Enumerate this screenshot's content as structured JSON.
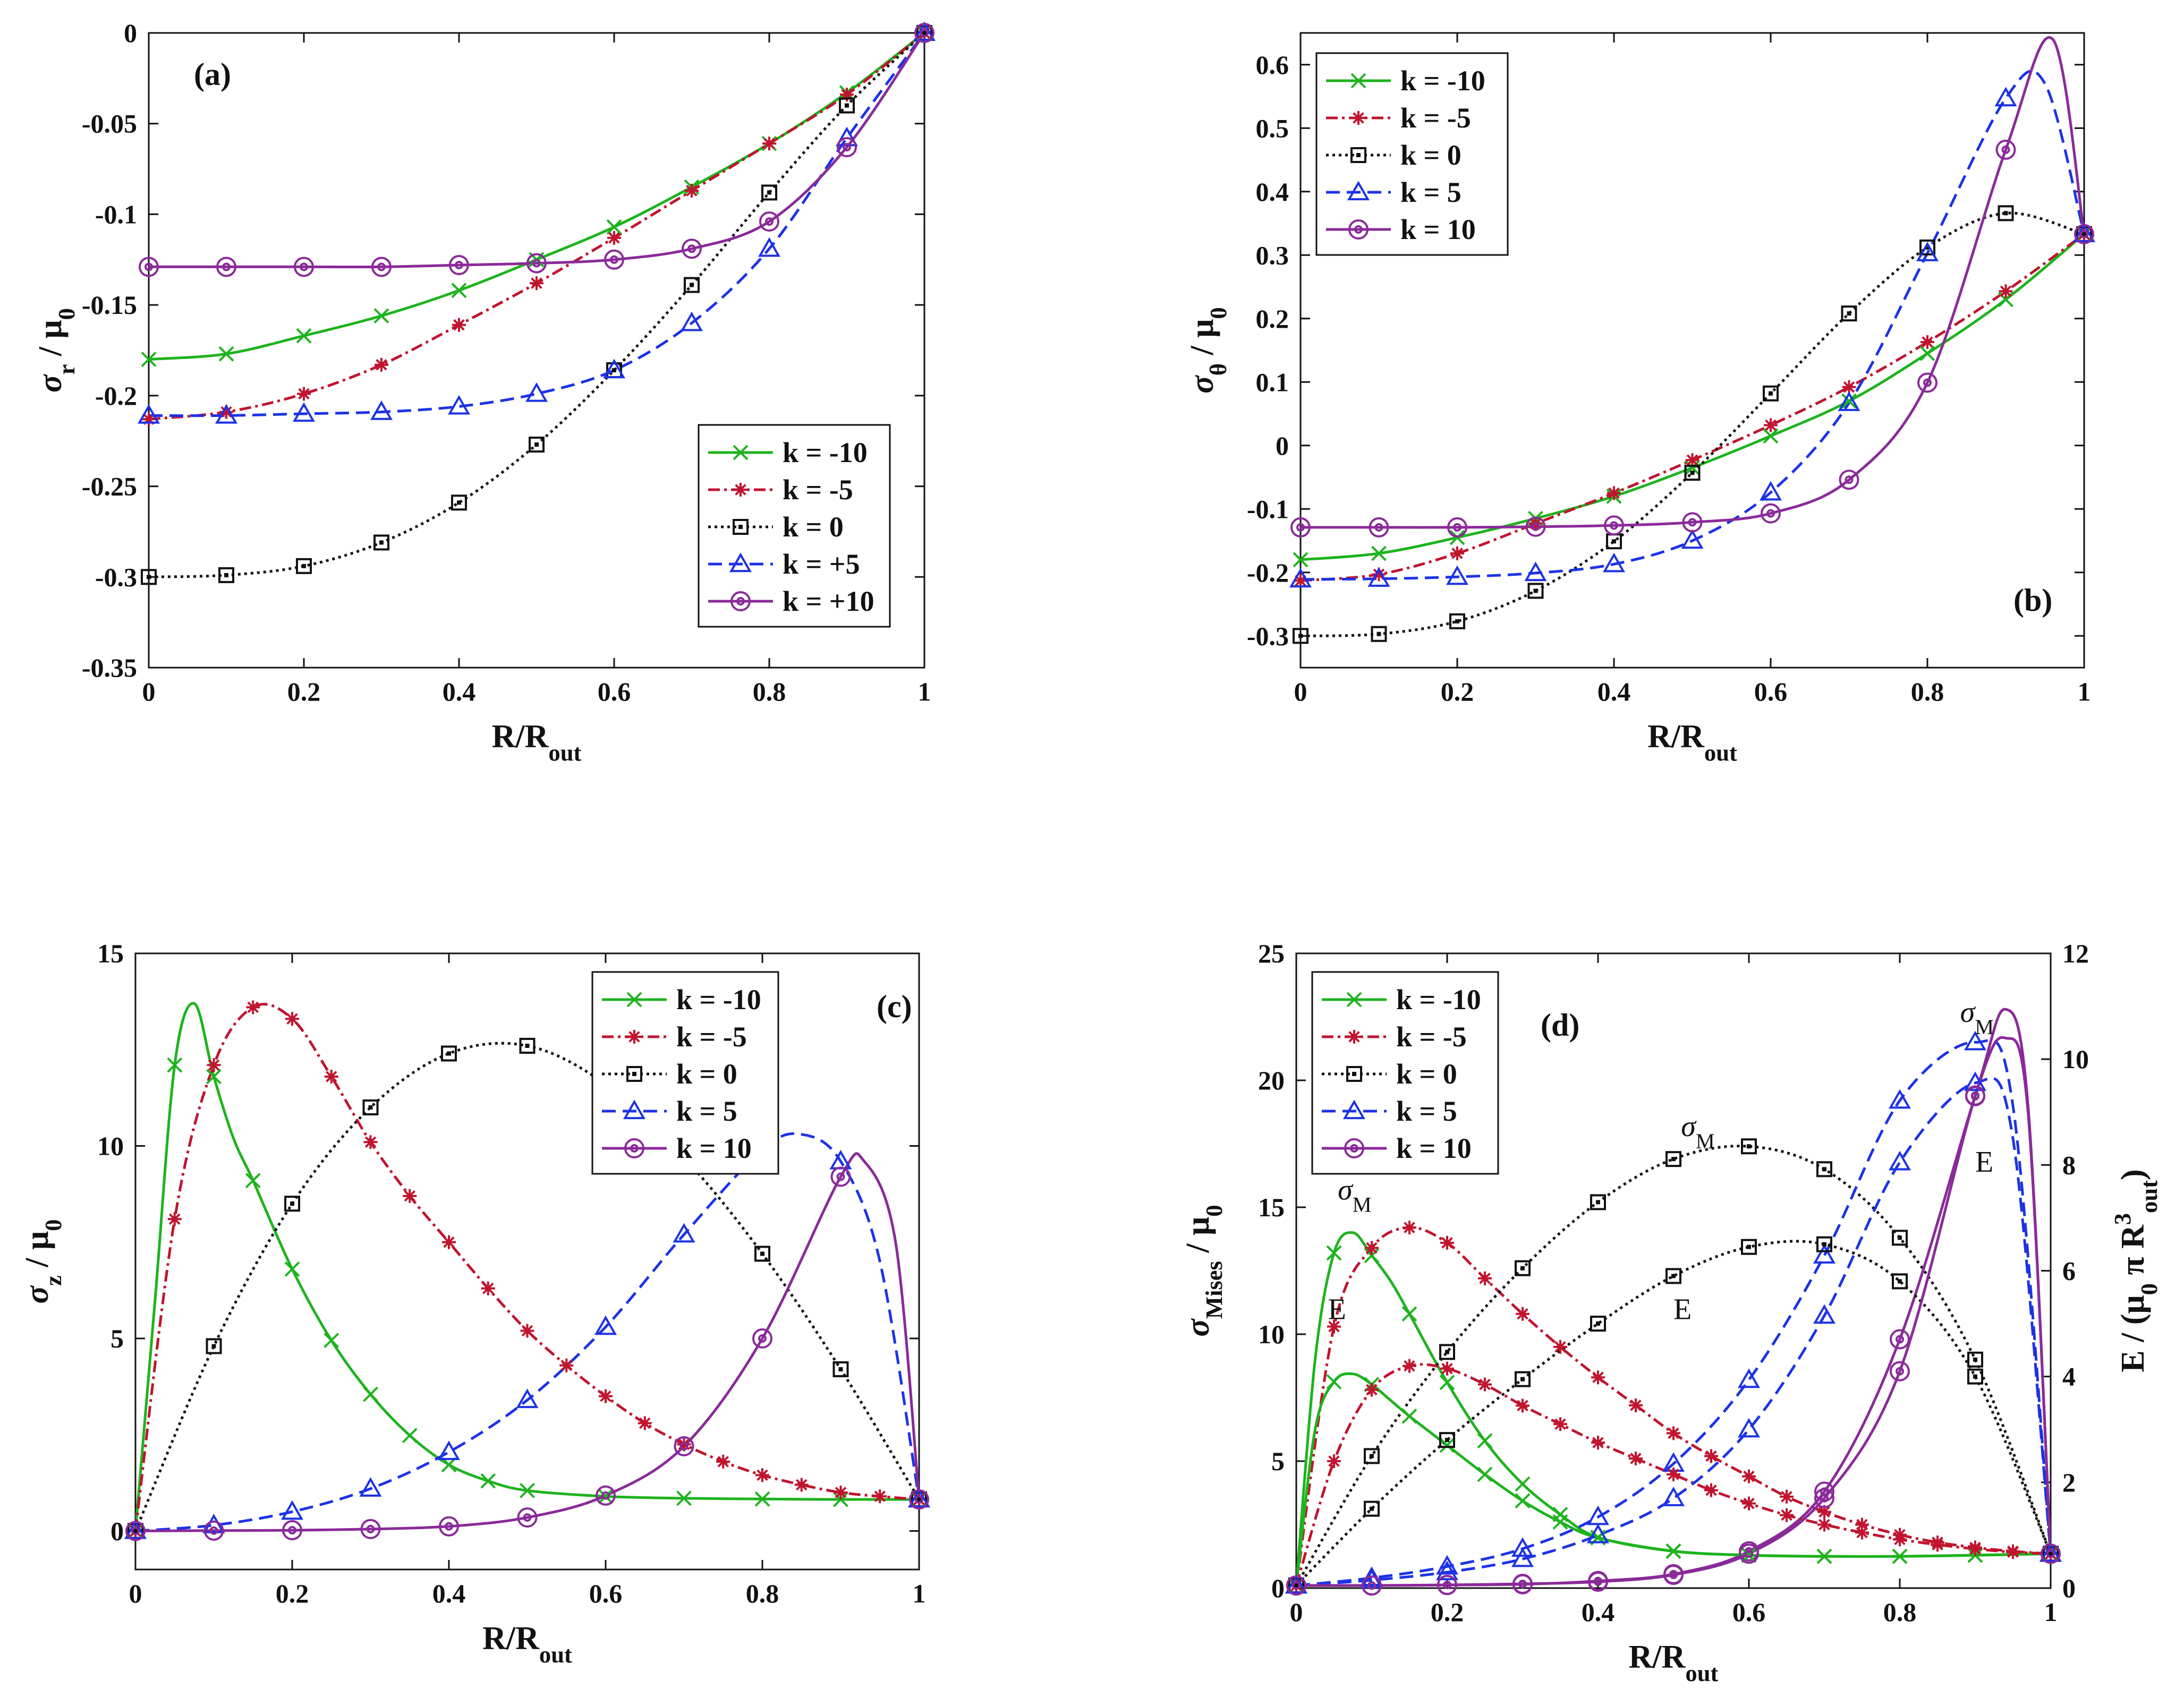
{
  "figure": {
    "style_colors": {
      "k=-10": "#1db31d",
      "k=-5": "#c0142f",
      "k=0": "#111111",
      "k=5": "#1c32e6",
      "k=10": "#8a2a99"
    },
    "panels": [
      {
        "tag": "(a)",
        "xlabel": "R/R",
        "xlabel_sub": "out",
        "ylabel": "σ",
        "ylabel_sub": "r",
        "ylabel_tail": " / μ",
        "ylabel_tail_sub": "0",
        "legend": [
          "k = -10",
          "k = -5",
          "k = 0",
          "k = +5",
          "k = +10"
        ]
      },
      {
        "tag": "(b)",
        "xlabel": "R/R",
        "xlabel_sub": "out",
        "ylabel": "σ",
        "ylabel_sub": "θ",
        "ylabel_tail": " / μ",
        "ylabel_tail_sub": "0",
        "legend": [
          "k = -10",
          "k = -5",
          "k = 0",
          "k = 5",
          "k = 10"
        ]
      },
      {
        "tag": "(c)",
        "xlabel": "R/R",
        "xlabel_sub": "out",
        "ylabel": "σ",
        "ylabel_sub": "z",
        "ylabel_tail": " / μ",
        "ylabel_tail_sub": "0",
        "legend": [
          "k = -10",
          "k = -5",
          "k = 0",
          "k = 5",
          "k = 10"
        ]
      },
      {
        "tag": "(d)",
        "xlabel": "R/R",
        "xlabel_sub": "out",
        "ylabel": "σ",
        "ylabel_sub": "Mises",
        "ylabel_tail": " / μ",
        "ylabel_tail_sub": "0",
        "y2label": "E / (μ",
        "y2label_sub": "0",
        "y2label_mid": " π R",
        "y2label_sup": "3",
        "y2label_sub2": "out",
        "y2label_end": ")",
        "legend": [
          "k = -10",
          "k = -5",
          "k = 0",
          "k = 5",
          "k = 10"
        ],
        "annotations": {
          "sigma": "σ",
          "sigma_sub": "M",
          "energy": "E"
        }
      }
    ]
  },
  "chart_data": [
    {
      "type": "line",
      "panel": "(a)",
      "xlabel": "R/Rout",
      "ylabel": "σr / μ0",
      "xlim": [
        0,
        1
      ],
      "ylim": [
        -0.35,
        0
      ],
      "xticks": [
        "0",
        "0.2",
        "0.4",
        "0.6",
        "0.8",
        "1"
      ],
      "yticks": [
        "-0.35",
        "-0.3",
        "-0.25",
        "-0.2",
        "-0.15",
        "-0.1",
        "-0.05",
        "0"
      ],
      "legend_position": "lower-right",
      "series": [
        {
          "name": "k = -10",
          "x": [
            0,
            0.1,
            0.2,
            0.3,
            0.4,
            0.5,
            0.6,
            0.7,
            0.8,
            0.9,
            1.0
          ],
          "y": [
            -0.18,
            -0.177,
            -0.167,
            -0.156,
            -0.142,
            -0.125,
            -0.107,
            -0.085,
            -0.061,
            -0.033,
            0
          ]
        },
        {
          "name": "k = -5",
          "x": [
            0,
            0.1,
            0.2,
            0.3,
            0.4,
            0.5,
            0.6,
            0.7,
            0.8,
            0.9,
            1.0
          ],
          "y": [
            -0.213,
            -0.209,
            -0.199,
            -0.183,
            -0.161,
            -0.138,
            -0.113,
            -0.087,
            -0.061,
            -0.034,
            0
          ]
        },
        {
          "name": "k = 0",
          "x": [
            0,
            0.1,
            0.2,
            0.3,
            0.4,
            0.5,
            0.6,
            0.7,
            0.8,
            0.9,
            1.0
          ],
          "y": [
            -0.3,
            -0.299,
            -0.294,
            -0.281,
            -0.259,
            -0.227,
            -0.186,
            -0.139,
            -0.088,
            -0.04,
            0
          ]
        },
        {
          "name": "k = +5",
          "x": [
            0,
            0.1,
            0.2,
            0.3,
            0.4,
            0.5,
            0.6,
            0.7,
            0.8,
            0.9,
            1.0
          ],
          "y": [
            -0.211,
            -0.211,
            -0.21,
            -0.209,
            -0.206,
            -0.199,
            -0.186,
            -0.16,
            -0.119,
            -0.058,
            0
          ]
        },
        {
          "name": "k = +10",
          "x": [
            0,
            0.1,
            0.2,
            0.3,
            0.4,
            0.5,
            0.6,
            0.7,
            0.8,
            0.9,
            1.0
          ],
          "y": [
            -0.129,
            -0.129,
            -0.129,
            -0.129,
            -0.128,
            -0.127,
            -0.125,
            -0.119,
            -0.104,
            -0.063,
            0
          ]
        }
      ]
    },
    {
      "type": "line",
      "panel": "(b)",
      "xlabel": "R/Rout",
      "ylabel": "σθ / μ0",
      "xlim": [
        0,
        1
      ],
      "ylim": [
        -0.35,
        0.65
      ],
      "xticks": [
        "0",
        "0.2",
        "0.4",
        "0.6",
        "0.8",
        "1"
      ],
      "yticks": [
        "-0.3",
        "-0.2",
        "-0.1",
        "0",
        "0.1",
        "0.2",
        "0.3",
        "0.4",
        "0.5",
        "0.6"
      ],
      "legend_position": "upper-left",
      "series": [
        {
          "name": "k = -10",
          "x": [
            0,
            0.1,
            0.2,
            0.3,
            0.4,
            0.5,
            0.6,
            0.7,
            0.8,
            0.9,
            1.0
          ],
          "y": [
            -0.18,
            -0.17,
            -0.145,
            -0.115,
            -0.08,
            -0.035,
            0.015,
            0.07,
            0.145,
            0.23,
            0.333
          ]
        },
        {
          "name": "k = -5",
          "x": [
            0,
            0.1,
            0.2,
            0.3,
            0.4,
            0.5,
            0.6,
            0.7,
            0.8,
            0.9,
            1.0
          ],
          "y": [
            -0.213,
            -0.203,
            -0.17,
            -0.123,
            -0.075,
            -0.023,
            0.032,
            0.092,
            0.163,
            0.243,
            0.333
          ]
        },
        {
          "name": "k = 0",
          "x": [
            0,
            0.1,
            0.2,
            0.3,
            0.4,
            0.5,
            0.6,
            0.7,
            0.8,
            0.9,
            1.0
          ],
          "y": [
            -0.3,
            -0.297,
            -0.277,
            -0.229,
            -0.151,
            -0.043,
            0.082,
            0.208,
            0.312,
            0.366,
            0.333
          ]
        },
        {
          "name": "k = 5",
          "x": [
            0,
            0.1,
            0.2,
            0.3,
            0.4,
            0.5,
            0.6,
            0.7,
            0.8,
            0.9,
            0.95,
            1.0
          ],
          "y": [
            -0.211,
            -0.21,
            -0.207,
            -0.201,
            -0.187,
            -0.15,
            -0.074,
            0.067,
            0.303,
            0.547,
            0.57,
            0.333
          ]
        },
        {
          "name": "k = 10",
          "x": [
            0,
            0.1,
            0.2,
            0.3,
            0.4,
            0.5,
            0.6,
            0.7,
            0.8,
            0.9,
            0.96,
            1.0
          ],
          "y": [
            -0.129,
            -0.129,
            -0.129,
            -0.128,
            -0.126,
            -0.121,
            -0.107,
            -0.054,
            0.099,
            0.466,
            0.64,
            0.333
          ]
        }
      ]
    },
    {
      "type": "line",
      "panel": "(c)",
      "xlabel": "R/Rout",
      "ylabel": "σz / μ0",
      "xlim": [
        0,
        1
      ],
      "ylim": [
        -1,
        15
      ],
      "xticks": [
        "0",
        "0.2",
        "0.4",
        "0.6",
        "0.8",
        "1"
      ],
      "yticks": [
        "0",
        "5",
        "10",
        "15"
      ],
      "legend_position": "upper-right",
      "series": [
        {
          "name": "k = -10",
          "x": [
            0,
            0.025,
            0.05,
            0.075,
            0.1,
            0.125,
            0.15,
            0.2,
            0.25,
            0.3,
            0.35,
            0.4,
            0.45,
            0.5,
            0.6,
            0.7,
            0.8,
            0.9,
            1.0
          ],
          "y": [
            0,
            6,
            12.1,
            13.7,
            11.8,
            10.2,
            9.1,
            6.8,
            4.95,
            3.55,
            2.48,
            1.72,
            1.3,
            1.05,
            0.9,
            0.85,
            0.83,
            0.82,
            0.82
          ]
        },
        {
          "name": "k = -5",
          "x": [
            0,
            0.05,
            0.1,
            0.15,
            0.2,
            0.25,
            0.3,
            0.35,
            0.4,
            0.45,
            0.5,
            0.55,
            0.6,
            0.65,
            0.7,
            0.75,
            0.8,
            0.85,
            0.9,
            0.95,
            1.0
          ],
          "y": [
            0,
            8.1,
            12.1,
            13.6,
            13.3,
            11.8,
            10.1,
            8.7,
            7.5,
            6.3,
            5.2,
            4.3,
            3.5,
            2.8,
            2.25,
            1.8,
            1.45,
            1.2,
            1.0,
            0.9,
            0.82
          ]
        },
        {
          "name": "k = 0",
          "x": [
            0,
            0.1,
            0.2,
            0.3,
            0.4,
            0.5,
            0.6,
            0.7,
            0.8,
            0.9,
            1.0
          ],
          "y": [
            0,
            4.8,
            8.5,
            11.0,
            12.4,
            12.6,
            11.6,
            9.7,
            7.2,
            4.2,
            0.82
          ]
        },
        {
          "name": "k = 5",
          "x": [
            0,
            0.1,
            0.2,
            0.3,
            0.4,
            0.5,
            0.6,
            0.7,
            0.8,
            0.85,
            0.9,
            0.95,
            1.0
          ],
          "y": [
            0,
            0.15,
            0.5,
            1.1,
            2.05,
            3.4,
            5.3,
            7.7,
            9.9,
            10.3,
            9.6,
            7.0,
            0.82
          ]
        },
        {
          "name": "k = 10",
          "x": [
            0,
            0.1,
            0.2,
            0.3,
            0.4,
            0.5,
            0.6,
            0.7,
            0.8,
            0.9,
            0.93,
            0.97,
            1.0
          ],
          "y": [
            0,
            0.01,
            0.02,
            0.05,
            0.12,
            0.35,
            0.92,
            2.2,
            5.0,
            9.2,
            9.6,
            7.5,
            0.82
          ]
        }
      ]
    },
    {
      "type": "line",
      "panel": "(d)",
      "xlabel": "R/Rout",
      "ylabel": "σMises / μ0",
      "y2label": "E / (μ0 π R3out)",
      "xlim": [
        0,
        1
      ],
      "ylim": [
        0,
        25
      ],
      "y2lim": [
        0,
        12
      ],
      "xticks": [
        "0",
        "0.2",
        "0.4",
        "0.6",
        "0.8",
        "1"
      ],
      "yticks": [
        "0",
        "5",
        "10",
        "15",
        "20",
        "25"
      ],
      "y2ticks": [
        "0",
        "2",
        "4",
        "6",
        "8",
        "10",
        "12"
      ],
      "legend_position": "upper-left",
      "series": [
        {
          "name": "k = -10",
          "quantity": "σM",
          "axis": "left",
          "x": [
            0,
            0.025,
            0.05,
            0.075,
            0.1,
            0.125,
            0.15,
            0.2,
            0.25,
            0.3,
            0.35,
            0.4,
            0.5,
            0.6,
            0.7,
            0.8,
            0.9,
            1.0
          ],
          "y": [
            0.1,
            9,
            13.2,
            14.0,
            13.1,
            12.1,
            10.8,
            8.1,
            5.8,
            4.1,
            2.9,
            2.0,
            1.45,
            1.3,
            1.25,
            1.25,
            1.3,
            1.35
          ]
        },
        {
          "name": "k = -5",
          "quantity": "σM",
          "axis": "left",
          "x": [
            0,
            0.05,
            0.1,
            0.15,
            0.2,
            0.25,
            0.3,
            0.35,
            0.4,
            0.45,
            0.5,
            0.55,
            0.6,
            0.65,
            0.7,
            0.75,
            0.8,
            0.85,
            0.9,
            0.95,
            1.0
          ],
          "y": [
            0.1,
            10.3,
            13.4,
            14.2,
            13.6,
            12.2,
            10.8,
            9.5,
            8.3,
            7.2,
            6.1,
            5.2,
            4.4,
            3.6,
            3.0,
            2.5,
            2.1,
            1.8,
            1.6,
            1.45,
            1.35
          ]
        },
        {
          "name": "k = 0",
          "quantity": "σM",
          "axis": "left",
          "x": [
            0,
            0.1,
            0.2,
            0.3,
            0.4,
            0.5,
            0.6,
            0.7,
            0.8,
            0.9,
            1.0
          ],
          "y": [
            0.1,
            5.2,
            9.3,
            12.6,
            15.2,
            16.9,
            17.4,
            16.5,
            13.8,
            9.0,
            1.35
          ]
        },
        {
          "name": "k = 5",
          "quantity": "σM",
          "axis": "left",
          "x": [
            0,
            0.1,
            0.2,
            0.3,
            0.4,
            0.5,
            0.6,
            0.7,
            0.8,
            0.9,
            0.95,
            1.0
          ],
          "y": [
            0.1,
            0.4,
            0.85,
            1.55,
            2.8,
            4.9,
            8.2,
            13.1,
            19.2,
            21.5,
            19.0,
            1.35
          ]
        },
        {
          "name": "k = 10",
          "quantity": "σM",
          "axis": "left",
          "x": [
            0,
            0.1,
            0.2,
            0.3,
            0.4,
            0.5,
            0.6,
            0.7,
            0.8,
            0.9,
            0.94,
            0.97,
            1.0
          ],
          "y": [
            0.1,
            0.1,
            0.12,
            0.15,
            0.28,
            0.55,
            1.45,
            3.8,
            9.8,
            19.4,
            22.8,
            19.0,
            1.35
          ]
        },
        {
          "name": "k = -10",
          "quantity": "E",
          "axis": "right",
          "x": [
            0,
            0.025,
            0.05,
            0.075,
            0.1,
            0.125,
            0.15,
            0.2,
            0.25,
            0.3,
            0.35,
            0.4,
            0.5,
            0.6,
            0.7,
            0.8,
            0.9,
            1.0
          ],
          "y": [
            0.05,
            3.0,
            3.9,
            4.05,
            3.85,
            3.55,
            3.25,
            2.7,
            2.15,
            1.65,
            1.25,
            0.95,
            0.7,
            0.62,
            0.6,
            0.6,
            0.62,
            0.65
          ]
        },
        {
          "name": "k = -5",
          "quantity": "E",
          "axis": "right",
          "x": [
            0,
            0.05,
            0.1,
            0.15,
            0.2,
            0.25,
            0.3,
            0.35,
            0.4,
            0.45,
            0.5,
            0.55,
            0.6,
            0.65,
            0.7,
            0.75,
            0.8,
            0.85,
            0.9,
            0.95,
            1.0
          ],
          "y": [
            0.05,
            2.4,
            3.75,
            4.2,
            4.15,
            3.85,
            3.45,
            3.1,
            2.75,
            2.45,
            2.15,
            1.85,
            1.6,
            1.38,
            1.2,
            1.05,
            0.92,
            0.82,
            0.74,
            0.68,
            0.65
          ]
        },
        {
          "name": "k = 0",
          "quantity": "E",
          "axis": "right",
          "x": [
            0,
            0.1,
            0.2,
            0.3,
            0.4,
            0.5,
            0.6,
            0.7,
            0.8,
            0.9,
            1.0
          ],
          "y": [
            0.05,
            1.5,
            2.8,
            3.95,
            5.0,
            5.9,
            6.45,
            6.5,
            5.8,
            4.0,
            0.65
          ]
        },
        {
          "name": "k = 5",
          "quantity": "E",
          "axis": "right",
          "x": [
            0,
            0.1,
            0.2,
            0.3,
            0.4,
            0.5,
            0.6,
            0.7,
            0.8,
            0.9,
            0.95,
            1.0
          ],
          "y": [
            0.05,
            0.15,
            0.3,
            0.55,
            1.0,
            1.7,
            3.0,
            5.15,
            8.05,
            9.55,
            8.5,
            0.65
          ]
        },
        {
          "name": "k = 10",
          "quantity": "E",
          "axis": "right",
          "x": [
            0,
            0.1,
            0.2,
            0.3,
            0.4,
            0.5,
            0.6,
            0.7,
            0.8,
            0.9,
            0.94,
            0.97,
            1.0
          ],
          "y": [
            0.05,
            0.05,
            0.06,
            0.08,
            0.12,
            0.25,
            0.65,
            1.7,
            4.1,
            9.3,
            10.4,
            9.0,
            0.65
          ]
        }
      ]
    }
  ]
}
